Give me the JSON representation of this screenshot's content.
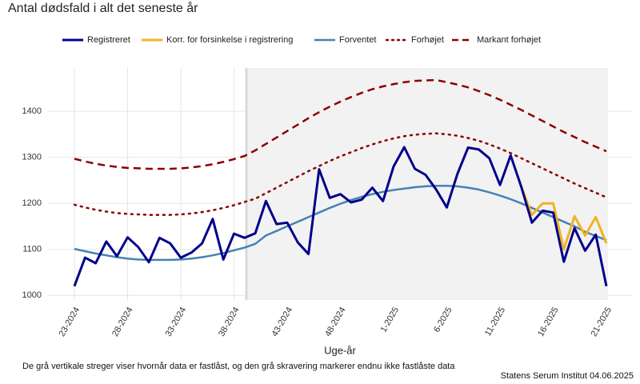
{
  "chart_data": {
    "type": "line",
    "title": "Antal dødsfald i alt det seneste år",
    "x_label": "Uge-år",
    "footnote": "De grå vertikale streger viser hvornår data er fastlåst, og den grå skravering markerer endnu ikke fastlåste data",
    "source": "Statens Serum Institut  04.06.2025",
    "categories": [
      "23-2024",
      null,
      null,
      null,
      null,
      "28-2024",
      null,
      null,
      null,
      null,
      "33-2024",
      null,
      null,
      null,
      null,
      "38-2024",
      null,
      null,
      null,
      null,
      "43-2024",
      null,
      null,
      null,
      null,
      "48-2024",
      null,
      null,
      null,
      null,
      "1-2025",
      null,
      null,
      null,
      null,
      "6-2025",
      null,
      null,
      null,
      null,
      "11-2025",
      null,
      null,
      null,
      null,
      "16-2025",
      null,
      null,
      null,
      null,
      "21-2025"
    ],
    "ylim": [
      990,
      1494
    ],
    "yticks": [
      1000,
      1100,
      1200,
      1300,
      1400
    ],
    "grid": true,
    "series": [
      {
        "name": "Registreret",
        "color": "#00008b",
        "style": "solid",
        "width": 3,
        "values": [
          1020,
          1082,
          1070,
          1117,
          1085,
          1126,
          1105,
          1072,
          1125,
          1113,
          1082,
          1093,
          1113,
          1166,
          1078,
          1134,
          1125,
          1135,
          1205,
          1155,
          1158,
          1115,
          1090,
          1274,
          1212,
          1220,
          1202,
          1208,
          1234,
          1205,
          1280,
          1322,
          1275,
          1262,
          1230,
          1191,
          1264,
          1321,
          1317,
          1298,
          1240,
          1304,
          1236,
          1158,
          1184,
          1180,
          1073,
          1146,
          1097,
          1132,
          1020
        ]
      },
      {
        "name": "Korr. for forsinkelse i registrering",
        "color": "#f0b323",
        "style": "solid",
        "width": 3,
        "values": [
          null,
          null,
          null,
          null,
          null,
          null,
          null,
          null,
          null,
          null,
          null,
          null,
          null,
          null,
          null,
          null,
          null,
          null,
          null,
          null,
          null,
          null,
          null,
          null,
          null,
          null,
          null,
          null,
          null,
          null,
          null,
          null,
          null,
          null,
          null,
          null,
          null,
          null,
          null,
          null,
          null,
          null,
          1236,
          1175,
          1200,
          1200,
          1100,
          1172,
          1130,
          1170,
          1113
        ]
      },
      {
        "name": "Forventet",
        "color": "#4682b4",
        "style": "solid",
        "width": 2.5,
        "values": [
          1101,
          1096,
          1091,
          1087,
          1083,
          1080,
          1078,
          1077,
          1077,
          1077,
          1078,
          1080,
          1083,
          1087,
          1092,
          1098,
          1104,
          1112,
          1130,
          1140,
          1150,
          1160,
          1170,
          1180,
          1190,
          1199,
          1207,
          1214,
          1220,
          1225,
          1229,
          1232,
          1235,
          1237,
          1238,
          1238,
          1237,
          1234,
          1230,
          1224,
          1217,
          1209,
          1200,
          1190,
          1180,
          1170,
          1160,
          1150,
          1138,
          1129,
          1120
        ]
      },
      {
        "name": "Forhøjet",
        "color": "#8b0000",
        "style": "dotted",
        "width": 2.5,
        "values": [
          1197,
          1191,
          1186,
          1182,
          1179,
          1177,
          1176,
          1175,
          1175,
          1175,
          1176,
          1178,
          1181,
          1185,
          1190,
          1196,
          1203,
          1210,
          1222,
          1234,
          1246,
          1258,
          1270,
          1281,
          1292,
          1302,
          1311,
          1320,
          1328,
          1335,
          1341,
          1346,
          1349,
          1351,
          1352,
          1350,
          1347,
          1342,
          1336,
          1328,
          1319,
          1309,
          1298,
          1287,
          1276,
          1265,
          1254,
          1243,
          1233,
          1223,
          1213
        ]
      },
      {
        "name": "Markant forhøjet",
        "color": "#8b0000",
        "style": "dashed",
        "width": 2.5,
        "values": [
          1297,
          1291,
          1286,
          1282,
          1279,
          1277,
          1276,
          1275,
          1275,
          1275,
          1276,
          1278,
          1281,
          1285,
          1290,
          1296,
          1303,
          1315,
          1329,
          1343,
          1357,
          1371,
          1385,
          1398,
          1410,
          1421,
          1431,
          1440,
          1448,
          1454,
          1459,
          1463,
          1466,
          1467,
          1468,
          1463,
          1458,
          1452,
          1444,
          1435,
          1425,
          1414,
          1403,
          1391,
          1379,
          1367,
          1355,
          1344,
          1333,
          1323,
          1313
        ]
      }
    ]
  }
}
